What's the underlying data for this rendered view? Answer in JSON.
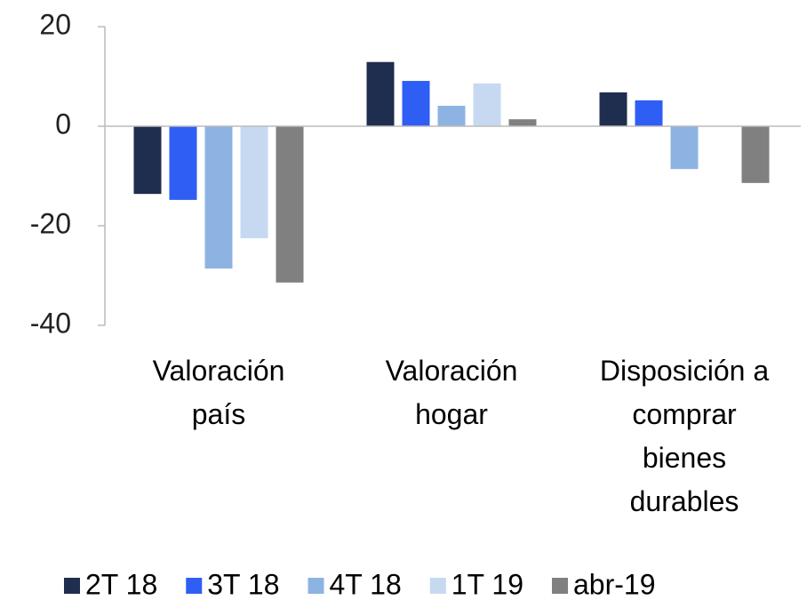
{
  "chart_data": {
    "type": "bar",
    "categories": [
      "Valoración país",
      "Valoración hogar",
      "Disposición a comprar bienes durables"
    ],
    "series": [
      {
        "name": "2T 18",
        "color": "#1f2d4e",
        "values": [
          -13.6,
          12.9,
          6.8
        ]
      },
      {
        "name": "3T 18",
        "color": "#2f5ef5",
        "values": [
          -14.8,
          9.1,
          5.2
        ]
      },
      {
        "name": "4T 18",
        "color": "#8db3e2",
        "values": [
          -28.6,
          4.1,
          -8.6
        ]
      },
      {
        "name": "1T 19",
        "color": "#c6d9f1",
        "values": [
          -22.5,
          8.6,
          null
        ]
      },
      {
        "name": "abr-19",
        "color": "#808080",
        "values": [
          -31.4,
          1.4,
          -11.4
        ]
      }
    ],
    "ylim": [
      -40,
      20
    ],
    "yticks": [
      -40,
      -20,
      0,
      20
    ],
    "legend": "bottom"
  }
}
